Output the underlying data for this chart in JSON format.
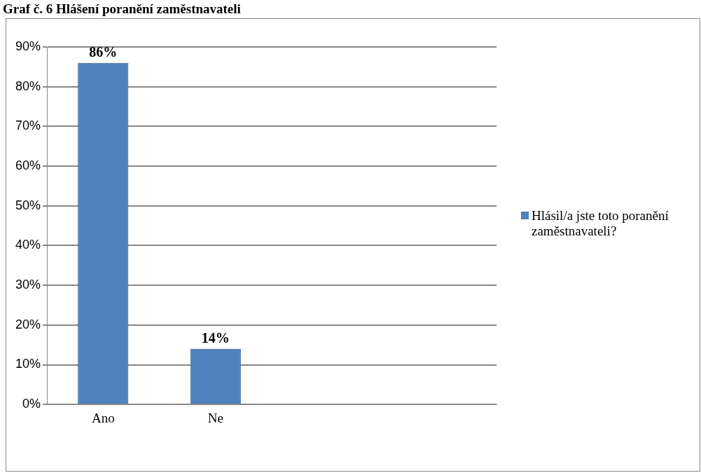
{
  "chart_data": {
    "type": "bar",
    "title": "Graf č. 6 Hlášení poranění zaměstnavateli",
    "categories": [
      "Ano",
      "Ne",
      null,
      null
    ],
    "series": [
      {
        "name": "Hlásil/a jste toto poranění zaměstnavateli?",
        "color": "#4f81bd",
        "values": [
          86,
          14,
          null,
          null
        ],
        "value_labels": [
          "86%",
          "14%",
          null,
          null
        ]
      }
    ],
    "ylim": [
      0,
      90
    ],
    "yticks": [
      {
        "value": 0,
        "label": "0%"
      },
      {
        "value": 10,
        "label": "10%"
      },
      {
        "value": 20,
        "label": "20%"
      },
      {
        "value": 30,
        "label": "30%"
      },
      {
        "value": 40,
        "label": "40%"
      },
      {
        "value": 50,
        "label": "50%"
      },
      {
        "value": 60,
        "label": "60%"
      },
      {
        "value": 70,
        "label": "70%"
      },
      {
        "value": 80,
        "label": "80%"
      },
      {
        "value": 90,
        "label": "90%"
      }
    ],
    "grid": "y",
    "legend": "right"
  }
}
